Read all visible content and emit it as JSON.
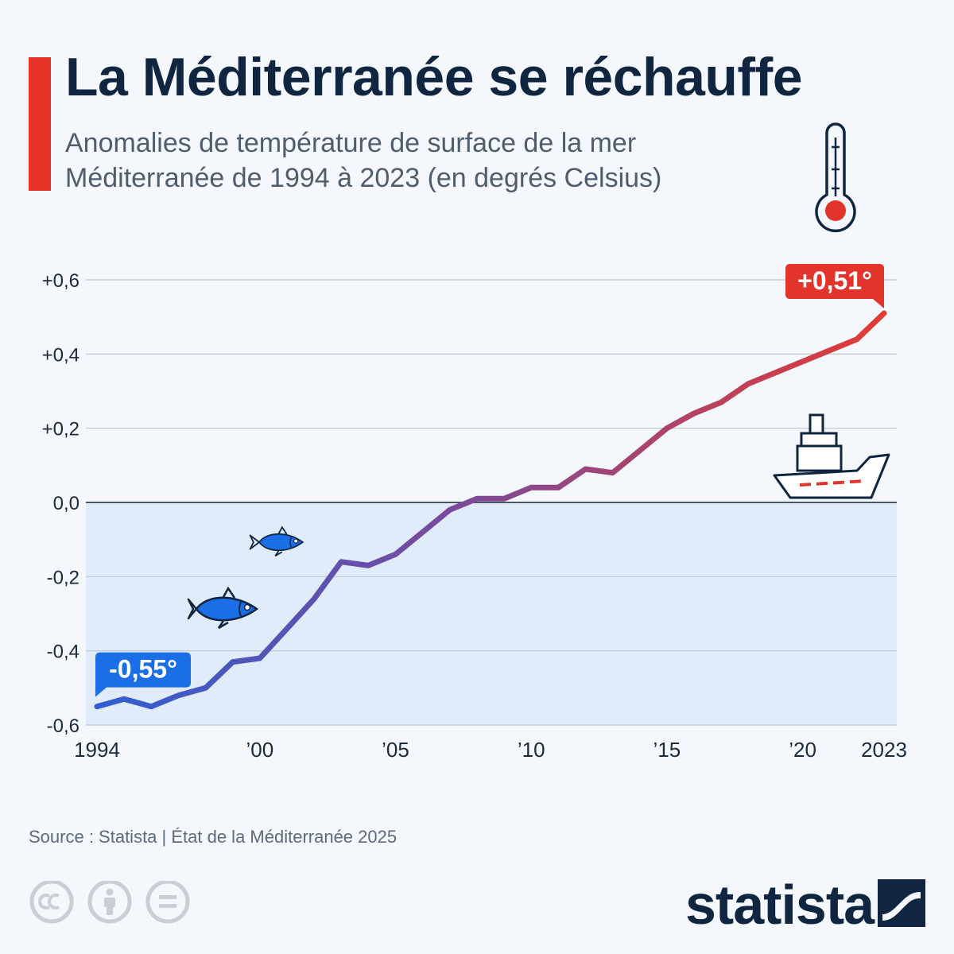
{
  "header": {
    "title": "La Méditerranée se réchauffe",
    "subtitle_line1": "Anomalies de température de surface de la mer",
    "subtitle_line2": "Méditerranée de 1994 à 2023 (en degrés Celsius)"
  },
  "colors": {
    "accent": "#e8332a",
    "title": "#0f2540",
    "line_start": "#2f5fd1",
    "line_mid": "#7a4a9c",
    "line_end": "#e23b35",
    "label_start_bg": "#1a6ee6",
    "label_end_bg": "#e3342b",
    "below_zero_fill": "#e1ecfa",
    "grid": "#bcc5d0",
    "fish": "#1a6ee6",
    "icon_outline": "#0f2540"
  },
  "icons": [
    "thermometer-icon",
    "fish-icon",
    "fish-icon",
    "ship-icon",
    "cc-icon",
    "by-icon",
    "nd-icon",
    "statista-logo"
  ],
  "chart_data": {
    "type": "line",
    "title": "La Méditerranée se réchauffe",
    "xlabel": "",
    "ylabel": "",
    "x": [
      1994,
      1995,
      1996,
      1997,
      1998,
      1999,
      2000,
      2001,
      2002,
      2003,
      2004,
      2005,
      2006,
      2007,
      2008,
      2009,
      2010,
      2011,
      2012,
      2013,
      2014,
      2015,
      2016,
      2017,
      2018,
      2019,
      2020,
      2021,
      2022,
      2023
    ],
    "series": [
      {
        "values": [
          -0.55,
          -0.53,
          -0.55,
          -0.52,
          -0.5,
          -0.43,
          -0.42,
          -0.34,
          -0.26,
          -0.16,
          -0.17,
          -0.14,
          -0.08,
          -0.02,
          0.01,
          0.01,
          0.04,
          0.04,
          0.09,
          0.08,
          0.14,
          0.2,
          0.24,
          0.27,
          0.32,
          0.35,
          0.38,
          0.41,
          0.44,
          0.51
        ]
      }
    ],
    "ylim": [
      -0.6,
      0.6
    ],
    "xlim": [
      1994,
      2023
    ],
    "y_ticks": [
      {
        "value": 0.6,
        "label": "+0,6"
      },
      {
        "value": 0.4,
        "label": "+0,4"
      },
      {
        "value": 0.2,
        "label": "+0,2"
      },
      {
        "value": 0.0,
        "label": "0,0"
      },
      {
        "value": -0.2,
        "label": "-0,2"
      },
      {
        "value": -0.4,
        "label": "-0,4"
      },
      {
        "value": -0.6,
        "label": "-0,6"
      }
    ],
    "x_ticks": [
      {
        "value": 1994,
        "label": "1994"
      },
      {
        "value": 2000,
        "label": "’00"
      },
      {
        "value": 2005,
        "label": "’05"
      },
      {
        "value": 2010,
        "label": "’10"
      },
      {
        "value": 2015,
        "label": "’15"
      },
      {
        "value": 2020,
        "label": "’20"
      },
      {
        "value": 2023,
        "label": "2023"
      }
    ],
    "annotations": [
      {
        "x": 1994,
        "y": -0.55,
        "label": "-0,55°"
      },
      {
        "x": 2023,
        "y": 0.51,
        "label": "+0,51°"
      }
    ],
    "grid": true,
    "below_zero_shaded": true
  },
  "footer": {
    "source": "Source : Statista | État de la Méditerranée 2025",
    "brand": "statista"
  }
}
